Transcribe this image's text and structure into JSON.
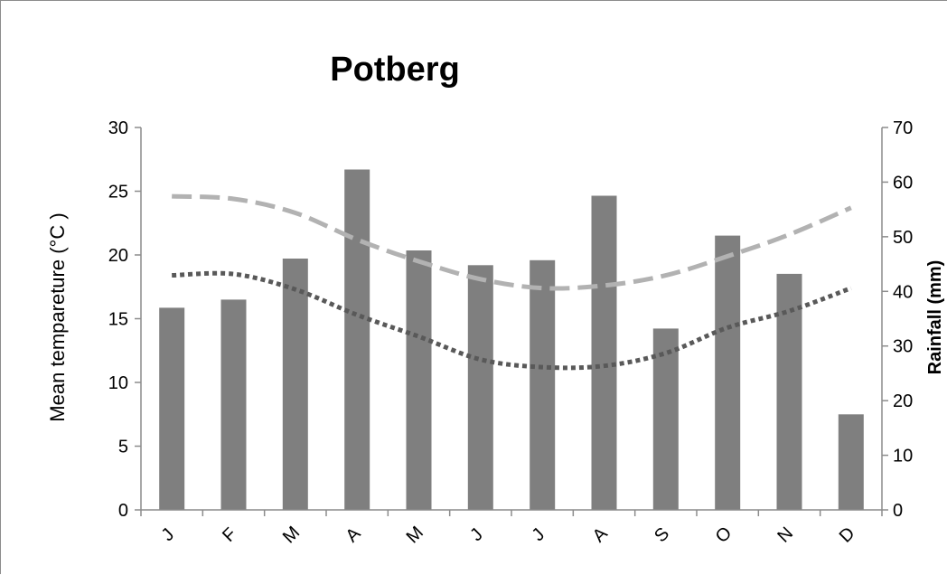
{
  "chart_data": {
    "type": "bar",
    "title": "Potberg",
    "categories": [
      "J",
      "F",
      "M",
      "A",
      "M",
      "J",
      "J",
      "A",
      "S",
      "O",
      "N",
      "D"
    ],
    "ylabel_left": "Mean tempareture (°C )",
    "ylabel_right": "Rainfall (mm)",
    "ylim_left": [
      0,
      30
    ],
    "yticks_left": [
      0,
      5,
      10,
      15,
      20,
      25,
      30
    ],
    "ylim_right": [
      0,
      70
    ],
    "yticks_right": [
      0,
      10,
      20,
      30,
      40,
      50,
      60,
      70
    ],
    "bars": {
      "axis": "right",
      "values": [
        37,
        38.5,
        46,
        62.3,
        47.5,
        44.8,
        45.7,
        57.5,
        33.2,
        50.2,
        43.2,
        17.5
      ],
      "color": "#7f7f7f"
    },
    "lines": [
      {
        "axis": "left",
        "style": "dashed",
        "color": "#b2b2b2",
        "values": [
          24.6,
          24.4,
          23.3,
          21.2,
          19.5,
          18.1,
          17.4,
          17.6,
          18.4,
          19.9,
          21.6,
          23.7
        ]
      },
      {
        "axis": "left",
        "style": "dotted",
        "color": "#595959",
        "values": [
          18.4,
          18.5,
          17.3,
          15.3,
          13.6,
          11.8,
          11.2,
          11.3,
          12.3,
          14.3,
          15.6,
          17.4
        ]
      }
    ],
    "grid": false,
    "legend": "none"
  }
}
